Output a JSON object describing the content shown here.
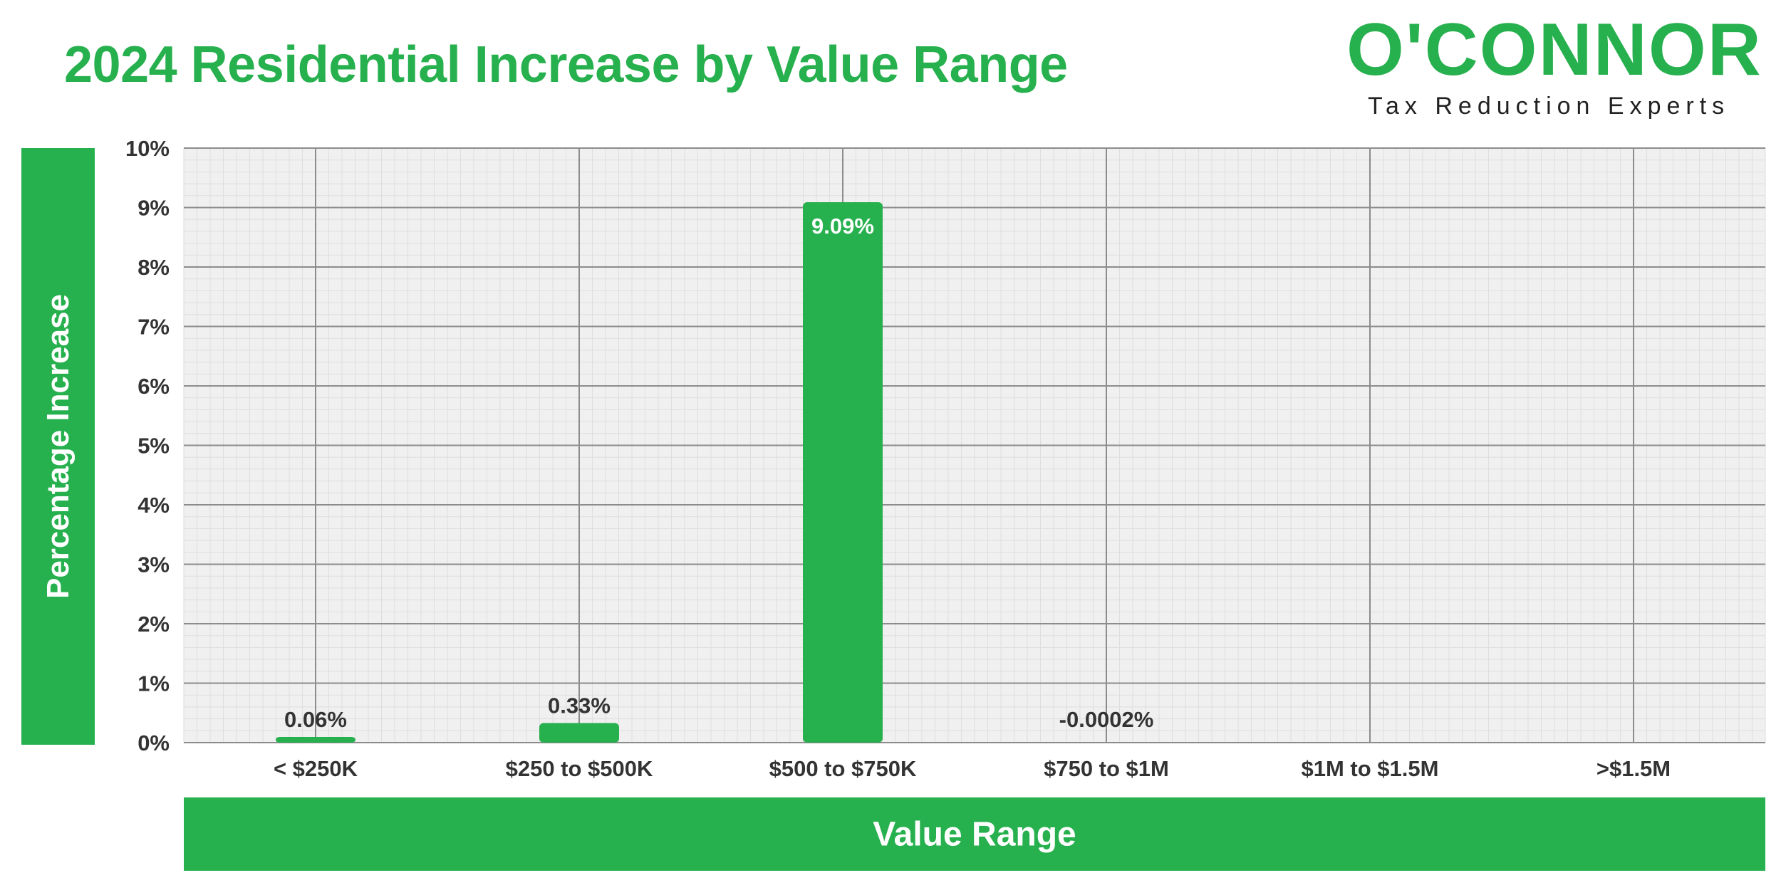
{
  "header": {
    "title": "2024 Residential Increase by Value Range"
  },
  "logo": {
    "wordmark": "O'CONNOR",
    "tagline": "Tax Reduction Experts"
  },
  "colors": {
    "accent": "#27b04e",
    "plot_background": "#f0f0f0",
    "major_grid": "#8c8c8c",
    "minor_grid": "#dedede",
    "tick_text": "#333333"
  },
  "chart_data": {
    "type": "bar",
    "title": "2024 Residential Increase by Value Range",
    "xlabel": "Value Range",
    "ylabel": "Percentage Increase",
    "categories": [
      "< $250K",
      "$250 to $500K",
      "$500 to $750K",
      "$750 to $1M",
      "$1M to $1.5M",
      ">$1.5M"
    ],
    "values": [
      0.06,
      0.33,
      9.09,
      -0.0002,
      null,
      null
    ],
    "data_labels": [
      "0.06%",
      "0.33%",
      "9.09%",
      "-0.0002%",
      "",
      ""
    ],
    "ylim": [
      0,
      10
    ],
    "yticks": [
      0,
      1,
      2,
      3,
      4,
      5,
      6,
      7,
      8,
      9,
      10
    ],
    "ytick_labels": [
      "0%",
      "1%",
      "2%",
      "3%",
      "4%",
      "5%",
      "6%",
      "7%",
      "8%",
      "9%",
      "10%"
    ],
    "grid": true,
    "legend": "none"
  }
}
